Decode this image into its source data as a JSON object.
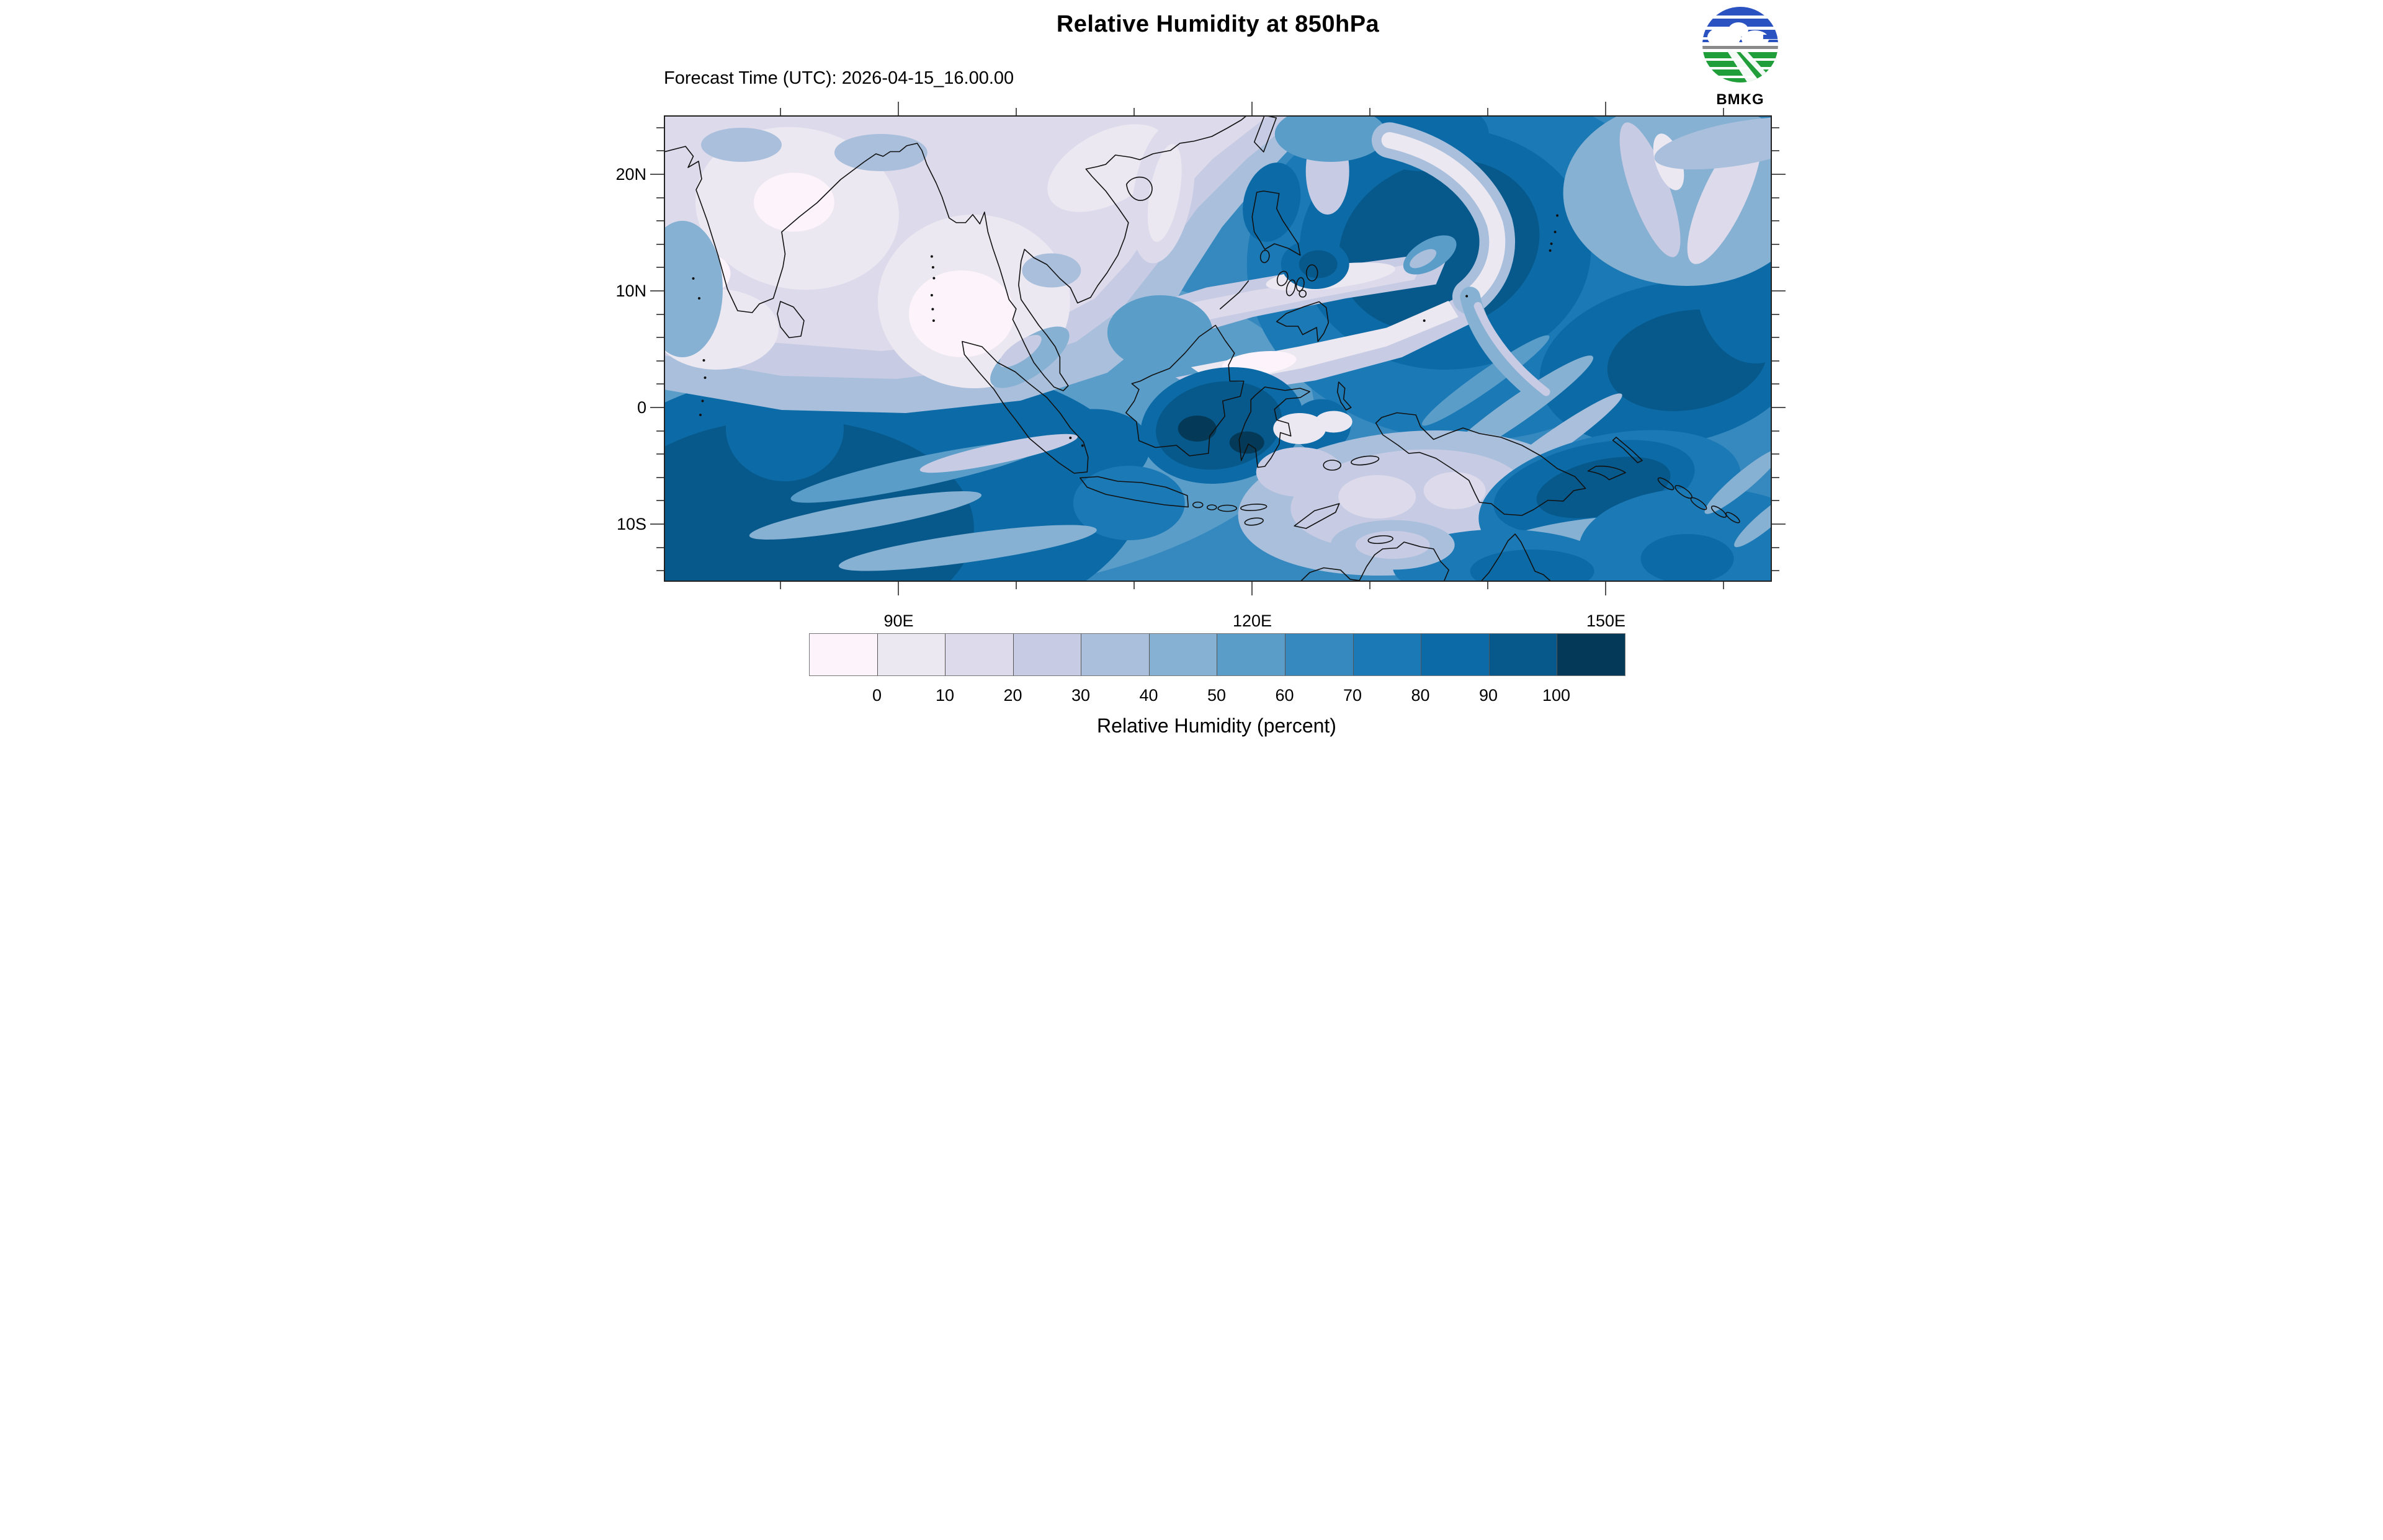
{
  "header": {
    "title": "Relative Humidity at 850hPa",
    "forecast_time": "Forecast Time (UTC): 2026-04-15_16.00.00"
  },
  "logo": {
    "label": "BMKG",
    "blue": "#2a52c0",
    "green": "#1f9e3a",
    "divider": "#8a8a8a"
  },
  "map_axes": {
    "x_major": [
      {
        "label": "90E",
        "lon": 90
      },
      {
        "label": "120E",
        "lon": 120
      },
      {
        "label": "150E",
        "lon": 150
      }
    ],
    "x_minor_lons": [
      80,
      100,
      110,
      130,
      140,
      160
    ],
    "y_major": [
      {
        "label": "20N",
        "lat": 20
      },
      {
        "label": "10N",
        "lat": 10
      },
      {
        "label": "0",
        "lat": 0
      },
      {
        "label": "10S",
        "lat": -10
      }
    ],
    "y_minor_lats": [
      24,
      22,
      18,
      16,
      14,
      12,
      8,
      6,
      4,
      2,
      -2,
      -4,
      -6,
      -8,
      -12,
      -14
    ]
  },
  "colorbar": {
    "caption": "Relative Humidity (percent)",
    "tick_labels": [
      "0",
      "10",
      "20",
      "30",
      "40",
      "50",
      "60",
      "70",
      "80",
      "90",
      "100"
    ],
    "colors": [
      "#fdf3fa",
      "#ebe8f1",
      "#dcdaeb",
      "#c7cbe3",
      "#a9bfdc",
      "#87b1d3",
      "#5b9dc9",
      "#3689bf",
      "#1b79b5",
      "#0c6ba7",
      "#07598b",
      "#043a57"
    ],
    "units": "percent",
    "min": 0,
    "max": 100
  }
}
